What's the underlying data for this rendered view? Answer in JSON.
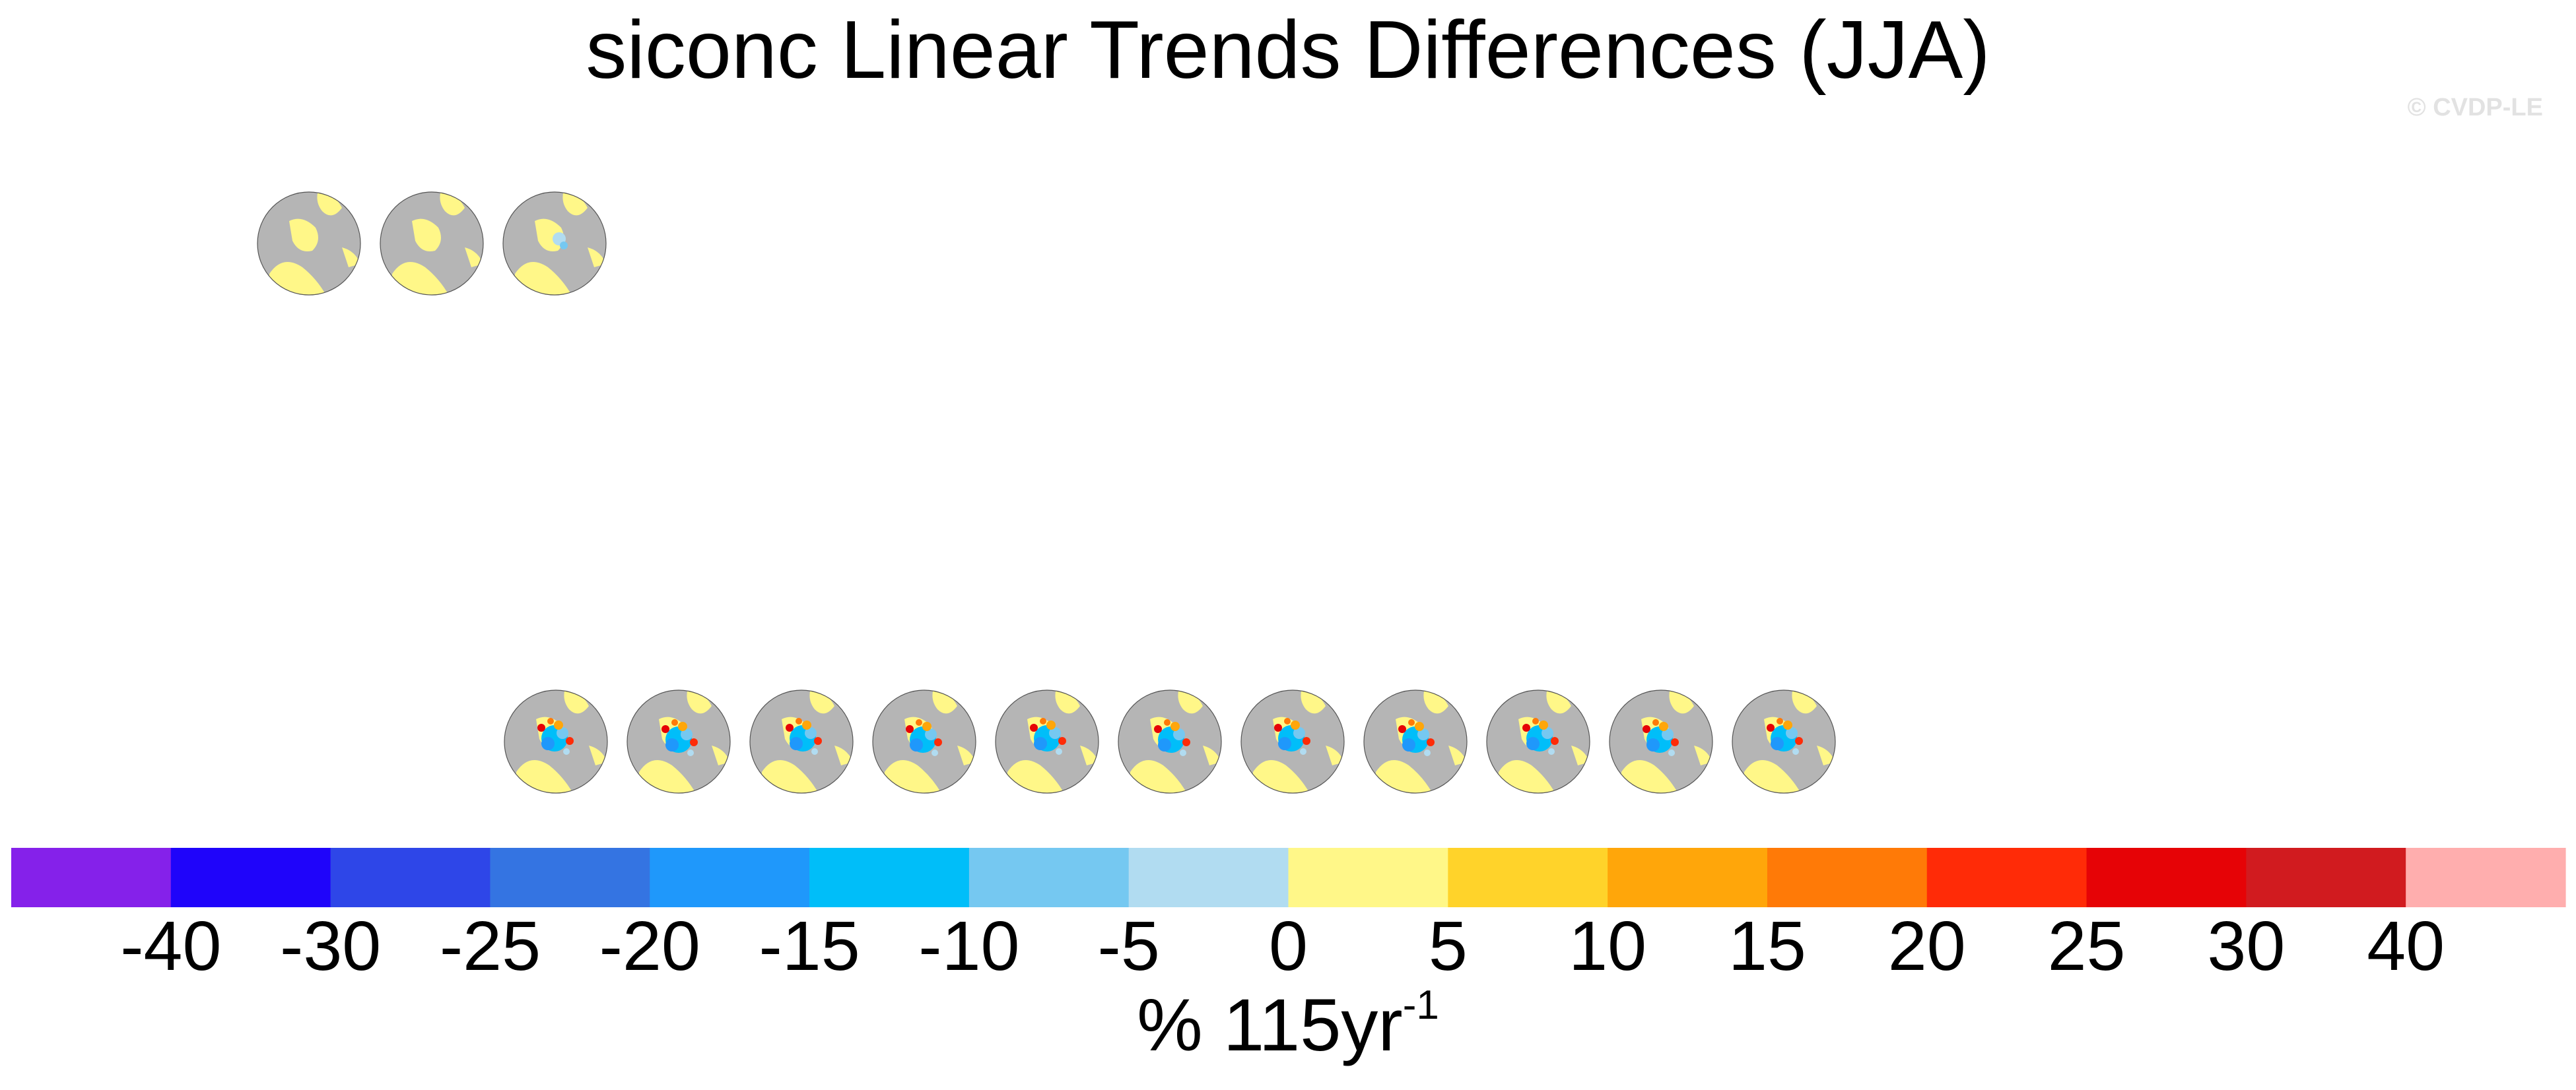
{
  "title": "siconc Linear Trends Differences (JJA)",
  "watermark": "© CVDP-LE",
  "chart_data": {
    "type": "heatmap",
    "title": "siconc Linear Trends Differences (JJA)",
    "projection": "north polar stereographic",
    "colorbar": {
      "label_main": "% 115yr",
      "label_exponent": "-1",
      "tick_labels": [
        "-40",
        "-30",
        "-25",
        "-20",
        "-15",
        "-10",
        "-5",
        "0",
        "5",
        "10",
        "15",
        "20",
        "25",
        "30",
        "40"
      ],
      "colors": [
        "#8521ea",
        "#1f04fa",
        "#2e46e8",
        "#3474e2",
        "#1f98fb",
        "#00bef9",
        "#75c8f1",
        "#b1dcf1",
        "#fff788",
        "#ffd32a",
        "#ffa60a",
        "#ff7a07",
        "#ff2b07",
        "#e60306",
        "#d11b1f",
        "#ffaeae"
      ]
    },
    "panel_rows": [
      {
        "row": 1,
        "panel_count": 3
      },
      {
        "row": 2,
        "panel_count": 11
      }
    ]
  },
  "colors": {
    "land": "#b5b5b5",
    "ocean_no_trend": "#fff788"
  }
}
